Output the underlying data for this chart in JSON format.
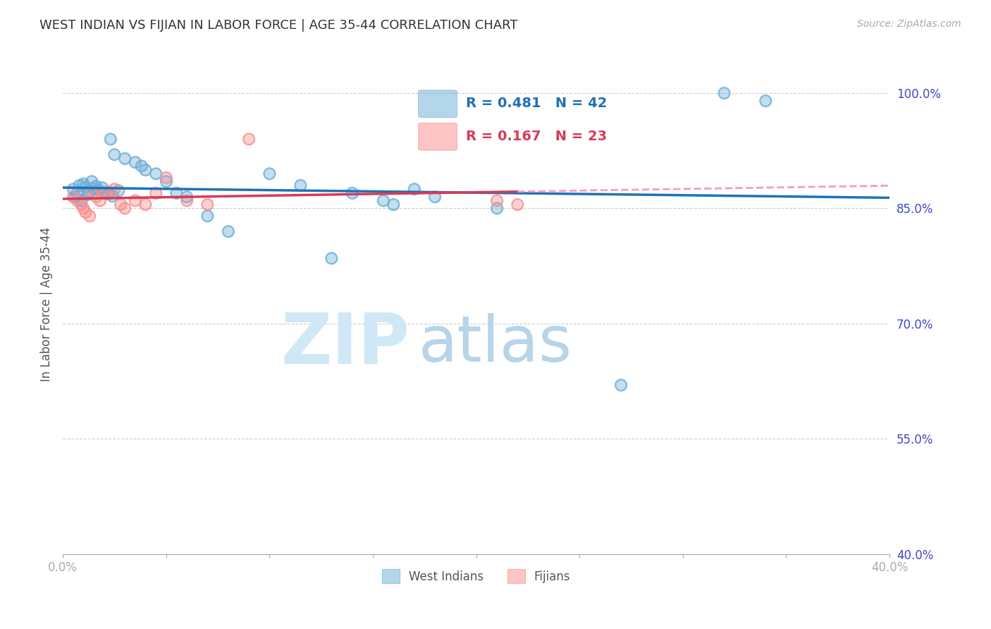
{
  "title": "WEST INDIAN VS FIJIAN IN LABOR FORCE | AGE 35-44 CORRELATION CHART",
  "source": "Source: ZipAtlas.com",
  "ylabel": "In Labor Force | Age 35-44",
  "xlabel": "",
  "xlim": [
    0.0,
    0.4
  ],
  "ylim": [
    0.4,
    1.05
  ],
  "yticks": [
    0.4,
    0.55,
    0.7,
    0.85,
    1.0
  ],
  "ytick_labels": [
    "40.0%",
    "55.0%",
    "70.0%",
    "85.0%",
    "100.0%"
  ],
  "xticks": [
    0.0,
    0.05,
    0.1,
    0.15,
    0.2,
    0.25,
    0.3,
    0.35,
    0.4
  ],
  "xtick_labels": [
    "0.0%",
    "",
    "",
    "",
    "",
    "",
    "",
    "",
    "40.0%"
  ],
  "west_indian_x": [
    0.005,
    0.008,
    0.007,
    0.006,
    0.009,
    0.011,
    0.013,
    0.012,
    0.01,
    0.014,
    0.015,
    0.016,
    0.017,
    0.019,
    0.02,
    0.022,
    0.024,
    0.027,
    0.025,
    0.03,
    0.023,
    0.035,
    0.038,
    0.04,
    0.045,
    0.05,
    0.055,
    0.06,
    0.07,
    0.08,
    0.1,
    0.115,
    0.13,
    0.14,
    0.155,
    0.16,
    0.17,
    0.18,
    0.21,
    0.27,
    0.32,
    0.34
  ],
  "west_indian_y": [
    0.875,
    0.88,
    0.87,
    0.865,
    0.86,
    0.878,
    0.872,
    0.868,
    0.882,
    0.885,
    0.876,
    0.879,
    0.874,
    0.877,
    0.871,
    0.869,
    0.866,
    0.873,
    0.92,
    0.915,
    0.94,
    0.91,
    0.905,
    0.9,
    0.895,
    0.885,
    0.87,
    0.865,
    0.84,
    0.82,
    0.895,
    0.88,
    0.785,
    0.87,
    0.86,
    0.855,
    0.875,
    0.865,
    0.85,
    0.62,
    1.0,
    0.99
  ],
  "fijian_x": [
    0.005,
    0.007,
    0.009,
    0.01,
    0.011,
    0.013,
    0.014,
    0.016,
    0.018,
    0.02,
    0.022,
    0.025,
    0.028,
    0.03,
    0.035,
    0.04,
    0.045,
    0.05,
    0.06,
    0.07,
    0.09,
    0.21,
    0.22
  ],
  "fijian_y": [
    0.865,
    0.86,
    0.855,
    0.85,
    0.845,
    0.84,
    0.87,
    0.865,
    0.86,
    0.87,
    0.872,
    0.875,
    0.855,
    0.85,
    0.86,
    0.855,
    0.87,
    0.89,
    0.86,
    0.855,
    0.94,
    0.86,
    0.855
  ],
  "R_west": 0.481,
  "N_west": 42,
  "R_fijian": 0.167,
  "N_fijian": 23,
  "blue_color": "#6baed6",
  "pink_color": "#fc8d8d",
  "blue_line_color": "#2171b5",
  "pink_line_color": "#d63b5a",
  "pink_dash_color": "#f4a0b0",
  "watermark_zip_color": "#d0e8f5",
  "watermark_atlas_color": "#b8d4e8",
  "grid_color": "#cccccc",
  "title_color": "#333333",
  "axis_label_color": "#555555",
  "tick_color": "#4444cc",
  "background_color": "#ffffff"
}
